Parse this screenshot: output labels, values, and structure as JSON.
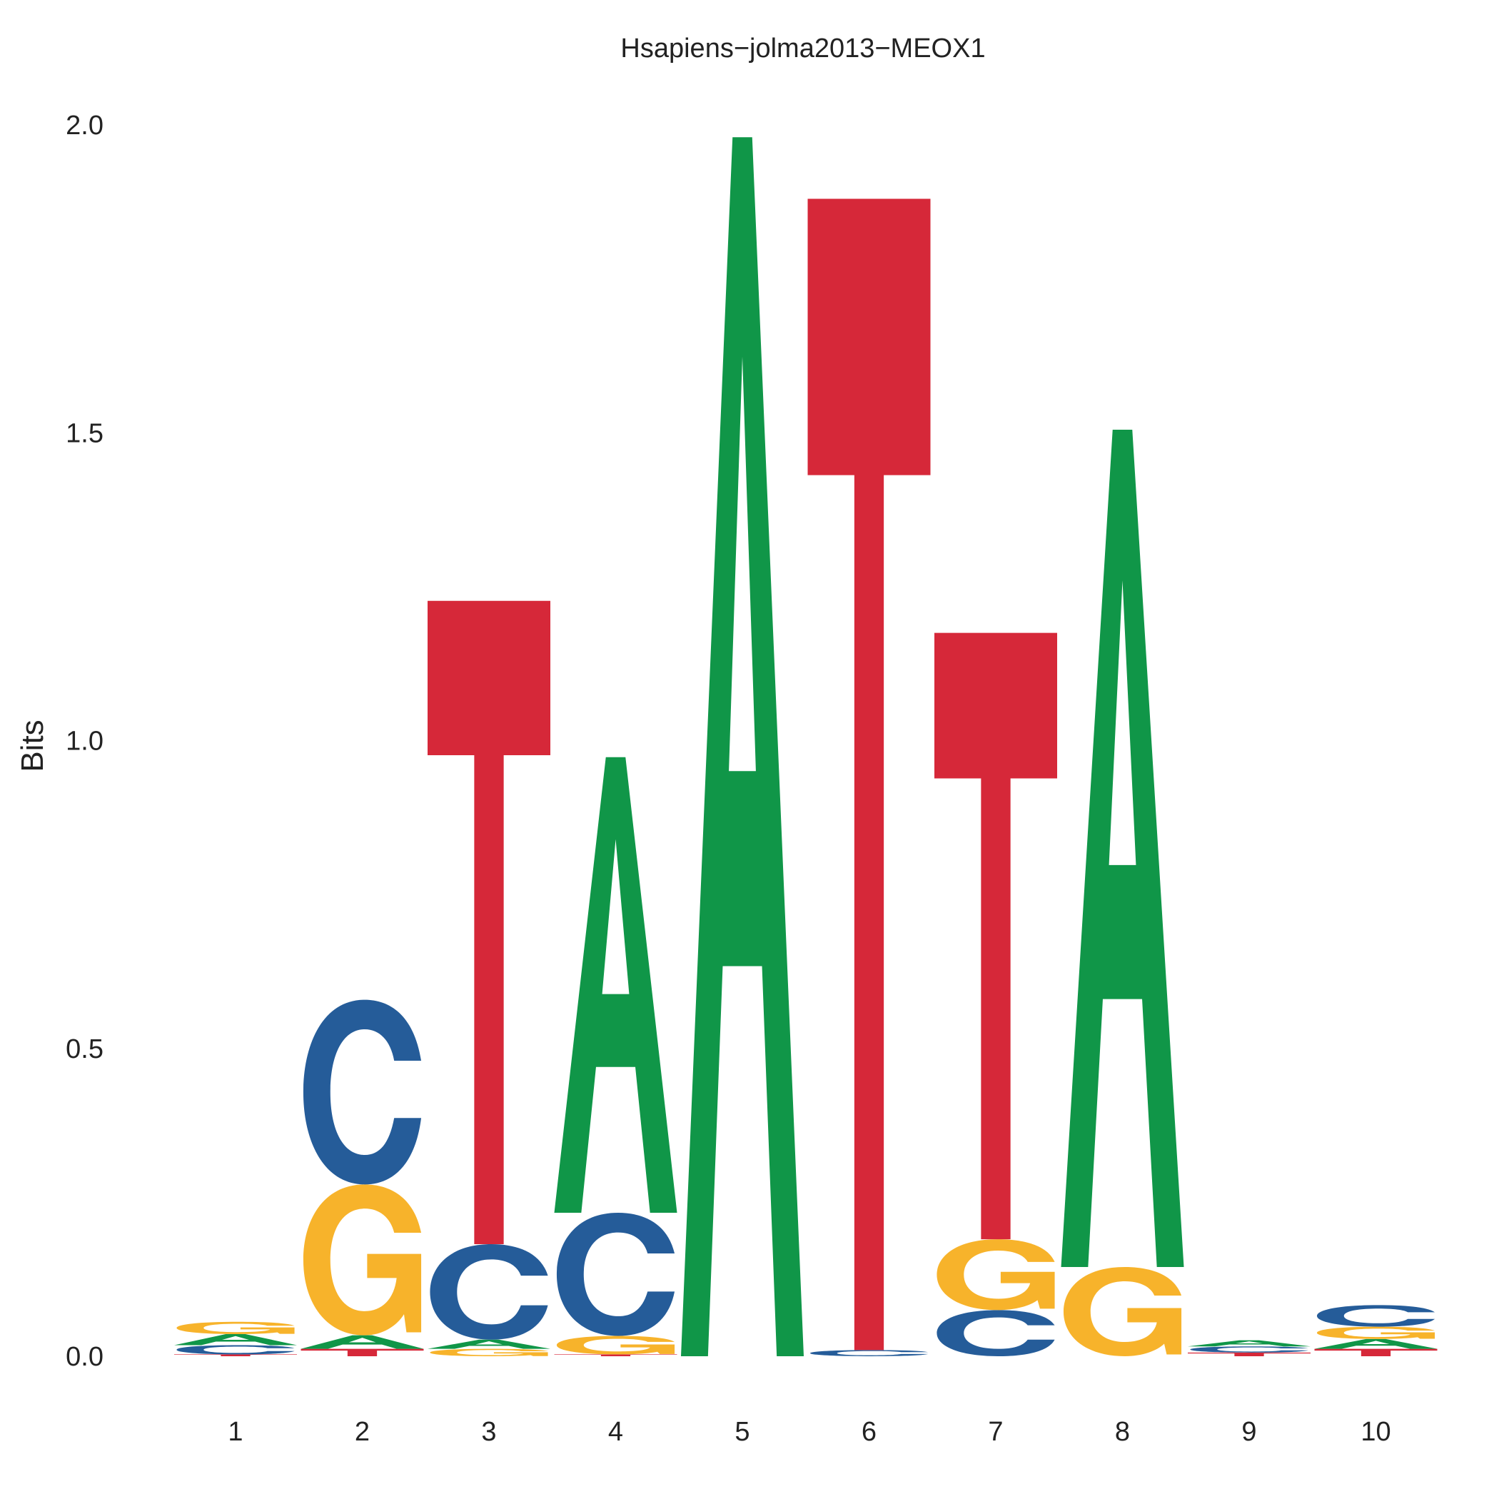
{
  "chart_data": {
    "type": "sequence-logo",
    "title": "Hsapiens−jolma2013−MEOX1",
    "ylabel": "Bits",
    "ylim": [
      0,
      2.0
    ],
    "yticks": [
      "0.0",
      "0.5",
      "1.0",
      "1.5",
      "2.0"
    ],
    "positions": [
      "1",
      "2",
      "3",
      "4",
      "5",
      "6",
      "7",
      "8",
      "9",
      "10"
    ],
    "colors": {
      "A": "#109648",
      "C": "#255C99",
      "G": "#F7B32B",
      "T": "#D62839"
    },
    "stacks": [
      [
        {
          "letter": "T",
          "bits": 0.003
        },
        {
          "letter": "C",
          "bits": 0.015
        },
        {
          "letter": "A",
          "bits": 0.018
        },
        {
          "letter": "G",
          "bits": 0.02
        }
      ],
      [
        {
          "letter": "T",
          "bits": 0.012
        },
        {
          "letter": "A",
          "bits": 0.022
        },
        {
          "letter": "G",
          "bits": 0.245
        },
        {
          "letter": "C",
          "bits": 0.3
        }
      ],
      [
        {
          "letter": "G",
          "bits": 0.012
        },
        {
          "letter": "A",
          "bits": 0.015
        },
        {
          "letter": "C",
          "bits": 0.155
        },
        {
          "letter": "T",
          "bits": 1.045
        }
      ],
      [
        {
          "letter": "T",
          "bits": 0.003
        },
        {
          "letter": "G",
          "bits": 0.03
        },
        {
          "letter": "C",
          "bits": 0.2
        },
        {
          "letter": "A",
          "bits": 0.74
        }
      ],
      [
        {
          "letter": "A",
          "bits": 1.98
        }
      ],
      [
        {
          "letter": "C",
          "bits": 0.01
        },
        {
          "letter": "T",
          "bits": 1.87
        }
      ],
      [
        {
          "letter": "C",
          "bits": 0.075
        },
        {
          "letter": "G",
          "bits": 0.115
        },
        {
          "letter": "T",
          "bits": 0.985
        }
      ],
      [
        {
          "letter": "G",
          "bits": 0.145
        },
        {
          "letter": "A",
          "bits": 1.36
        }
      ],
      [
        {
          "letter": "T",
          "bits": 0.006
        },
        {
          "letter": "C",
          "bits": 0.01
        },
        {
          "letter": "A",
          "bits": 0.01
        }
      ],
      [
        {
          "letter": "T",
          "bits": 0.012
        },
        {
          "letter": "A",
          "bits": 0.016
        },
        {
          "letter": "G",
          "bits": 0.02
        },
        {
          "letter": "C",
          "bits": 0.035
        }
      ]
    ]
  }
}
